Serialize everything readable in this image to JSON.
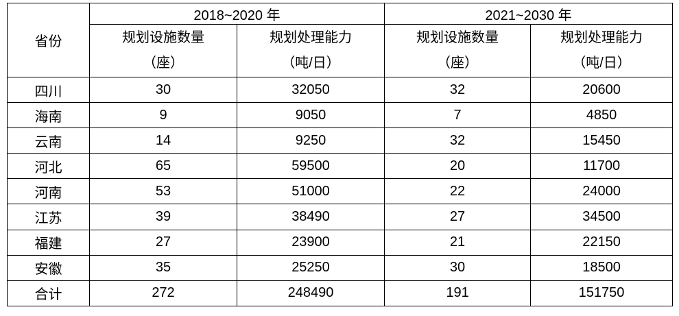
{
  "table": {
    "header": {
      "province": "省份",
      "period1": "2018~2020 年",
      "period2": "2021~2030 年",
      "count_label": "规划设施数量",
      "count_unit": "（座）",
      "capacity_label": "规划处理能力",
      "capacity_unit": "（吨/日）"
    },
    "rows": [
      {
        "province": "四川",
        "c1": "30",
        "cap1": "32050",
        "c2": "32",
        "cap2": "20600"
      },
      {
        "province": "海南",
        "c1": "9",
        "cap1": "9050",
        "c2": "7",
        "cap2": "4850"
      },
      {
        "province": "云南",
        "c1": "14",
        "cap1": "9250",
        "c2": "32",
        "cap2": "15450"
      },
      {
        "province": "河北",
        "c1": "65",
        "cap1": "59500",
        "c2": "20",
        "cap2": "11700"
      },
      {
        "province": "河南",
        "c1": "53",
        "cap1": "51000",
        "c2": "22",
        "cap2": "24000"
      },
      {
        "province": "江苏",
        "c1": "39",
        "cap1": "38490",
        "c2": "27",
        "cap2": "34500"
      },
      {
        "province": "福建",
        "c1": "27",
        "cap1": "23900",
        "c2": "21",
        "cap2": "22150"
      },
      {
        "province": "安徽",
        "c1": "35",
        "cap1": "25250",
        "c2": "30",
        "cap2": "18500"
      },
      {
        "province": "合计",
        "c1": "272",
        "cap1": "248490",
        "c2": "191",
        "cap2": "151750"
      }
    ]
  },
  "chart_data": {
    "type": "table",
    "title": "",
    "columns": [
      "省份",
      "2018~2020 年 规划设施数量（座）",
      "2018~2020 年 规划处理能力（吨/日）",
      "2021~2030 年 规划设施数量（座）",
      "2021~2030 年 规划处理能力（吨/日）"
    ],
    "rows": [
      [
        "四川",
        30,
        32050,
        32,
        20600
      ],
      [
        "海南",
        9,
        9050,
        7,
        4850
      ],
      [
        "云南",
        14,
        9250,
        32,
        15450
      ],
      [
        "河北",
        65,
        59500,
        20,
        11700
      ],
      [
        "河南",
        53,
        51000,
        22,
        24000
      ],
      [
        "江苏",
        39,
        38490,
        27,
        34500
      ],
      [
        "福建",
        27,
        23900,
        21,
        22150
      ],
      [
        "安徽",
        35,
        25250,
        30,
        18500
      ],
      [
        "合计",
        272,
        248490,
        191,
        151750
      ]
    ]
  },
  "colors": {
    "border": "#000000",
    "text": "#000000",
    "background": "#ffffff"
  }
}
